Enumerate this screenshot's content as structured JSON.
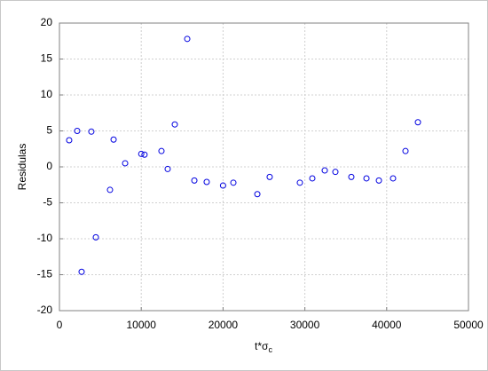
{
  "chart_data": {
    "type": "scatter",
    "x_label": {
      "text": "t*σ",
      "subscript": "c"
    },
    "y_label": "Residulas",
    "series": [
      {
        "color": "#0000e0",
        "x": [
          1190,
          2170,
          2710,
          3900,
          4450,
          6180,
          6620,
          8030,
          10000,
          10400,
          12470,
          13230,
          14100,
          15620,
          16490,
          18000,
          20000,
          21260,
          24190,
          25700,
          29390,
          30910,
          32430,
          33730,
          35680,
          37530,
          39050,
          40780,
          42300,
          43820
        ],
        "values": [
          3.7,
          5.0,
          -14.6,
          4.9,
          -9.8,
          -3.2,
          3.8,
          0.5,
          1.8,
          1.7,
          2.2,
          -0.3,
          5.9,
          17.8,
          -1.9,
          -2.1,
          -2.6,
          -2.2,
          -3.8,
          -1.4,
          -2.2,
          -1.6,
          -0.5,
          -0.7,
          -1.4,
          -1.6,
          -1.9,
          -1.6,
          2.2,
          6.2
        ]
      }
    ],
    "xlim": [
      0,
      50000
    ],
    "xticks": [
      0,
      10000,
      20000,
      30000,
      40000,
      50000
    ],
    "ylim": [
      -20,
      20
    ],
    "yticks": [
      -20,
      -15,
      -10,
      -5,
      0,
      5,
      10,
      15,
      20
    ],
    "grid": true
  }
}
